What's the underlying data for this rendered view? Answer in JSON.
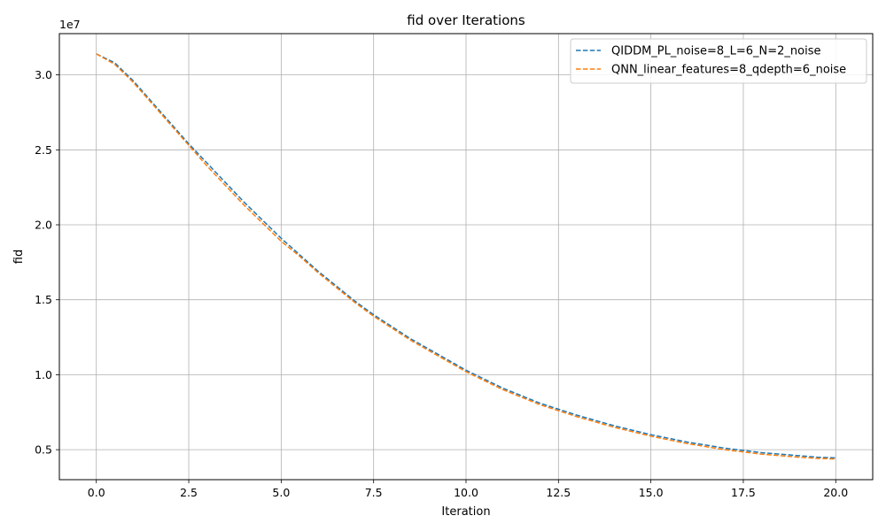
{
  "chart_data": {
    "type": "line",
    "title": "fid over Iterations",
    "xlabel": "Iteration",
    "ylabel": "fid",
    "y_offset_label": "1e7",
    "xlim": [
      -1.0,
      21.0
    ],
    "ylim": [
      3.0,
      32.75
    ],
    "x_ticks": [
      0,
      2.5,
      5,
      7.5,
      10,
      12.5,
      15,
      17.5,
      20
    ],
    "x_tick_labels": [
      "0.0",
      "2.5",
      "5.0",
      "7.5",
      "10.0",
      "12.5",
      "15.0",
      "17.5",
      "20.0"
    ],
    "y_ticks": [
      5,
      10,
      15,
      20,
      25,
      30
    ],
    "y_tick_labels": [
      "0.5",
      "1.0",
      "1.5",
      "2.0",
      "2.5",
      "3.0"
    ],
    "grid": true,
    "legend_position": "top-right",
    "x": [
      0,
      0.5,
      1,
      1.5,
      2,
      2.5,
      3,
      3.5,
      4,
      4.5,
      5,
      5.5,
      6,
      6.5,
      7,
      7.5,
      8,
      8.5,
      9,
      9.5,
      10,
      10.5,
      11,
      11.5,
      12,
      12.5,
      13,
      13.5,
      14,
      14.5,
      15,
      15.5,
      16,
      16.5,
      17,
      17.5,
      18,
      18.5,
      19,
      19.5,
      20
    ],
    "series": [
      {
        "name": "QIDDM_PL_noise=8_L=6_N=2_noise",
        "color": "#1f77b4",
        "values": [
          31.4,
          30.8,
          29.6,
          28.2,
          26.8,
          25.4,
          24.1,
          22.8,
          21.5,
          20.3,
          19.1,
          18.0,
          16.9,
          15.9,
          14.9,
          14.0,
          13.2,
          12.4,
          11.7,
          11.0,
          10.3,
          9.7,
          9.1,
          8.6,
          8.1,
          7.7,
          7.3,
          6.95,
          6.6,
          6.3,
          6.0,
          5.75,
          5.5,
          5.3,
          5.1,
          4.95,
          4.8,
          4.7,
          4.6,
          4.5,
          4.45
        ]
      },
      {
        "name": "QNN_linear_features=8_qdepth=6_noise",
        "color": "#ff7f0e",
        "values": [
          31.4,
          30.7,
          29.5,
          28.1,
          26.7,
          25.3,
          23.9,
          22.6,
          21.3,
          20.1,
          18.9,
          17.9,
          16.8,
          15.8,
          14.8,
          13.9,
          13.1,
          12.3,
          11.6,
          10.9,
          10.2,
          9.6,
          9.0,
          8.5,
          8.0,
          7.6,
          7.2,
          6.85,
          6.5,
          6.2,
          5.9,
          5.65,
          5.4,
          5.2,
          5.0,
          4.85,
          4.7,
          4.6,
          4.5,
          4.42,
          4.38
        ]
      }
    ]
  }
}
